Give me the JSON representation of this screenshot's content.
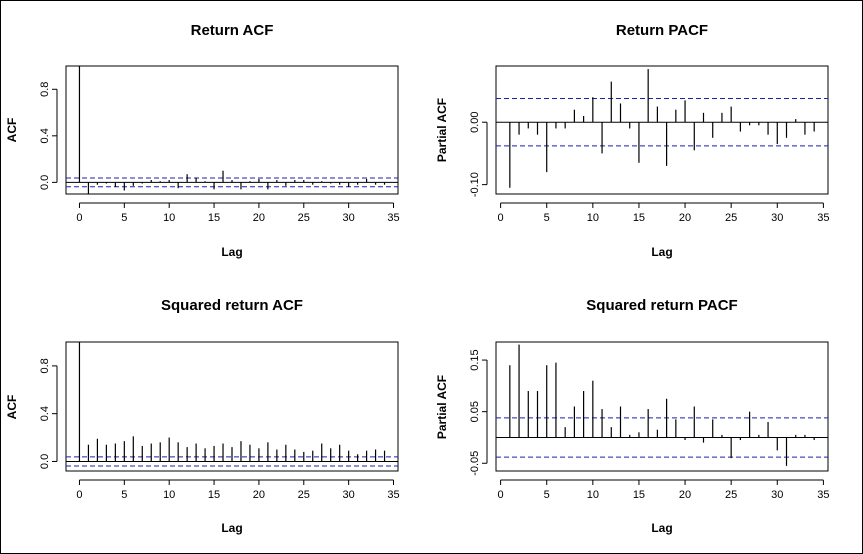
{
  "chart_data": [
    {
      "type": "bar",
      "title": "Return ACF",
      "xlabel": "Lag",
      "ylabel": "ACF",
      "xlim": [
        -1.5,
        35.5
      ],
      "ylim": [
        -0.1,
        1.0
      ],
      "xticks": [
        0,
        5,
        10,
        15,
        20,
        25,
        30,
        35
      ],
      "yticks": [
        0.0,
        0.4,
        0.8
      ],
      "ytick_labels": [
        "0.0",
        "0.4",
        "0.8"
      ],
      "zero_line": true,
      "ci": [
        0.038,
        -0.038
      ],
      "lags": [
        0,
        1,
        2,
        3,
        4,
        5,
        6,
        7,
        8,
        9,
        10,
        11,
        12,
        13,
        14,
        15,
        16,
        17,
        18,
        19,
        20,
        21,
        22,
        23,
        24,
        25,
        26,
        27,
        28,
        29,
        30,
        31,
        32,
        33,
        34
      ],
      "values": [
        1.0,
        -0.1,
        -0.02,
        -0.01,
        -0.04,
        -0.07,
        -0.03,
        -0.01,
        0.02,
        0.01,
        0.02,
        -0.05,
        0.07,
        0.04,
        0.01,
        -0.06,
        0.1,
        0.02,
        -0.06,
        0.01,
        0.03,
        -0.06,
        0.02,
        -0.03,
        0.02,
        0.02,
        -0.02,
        0.01,
        -0.01,
        -0.02,
        -0.04,
        -0.02,
        0.03,
        -0.02,
        -0.02
      ]
    },
    {
      "type": "bar",
      "title": "Return PACF",
      "xlabel": "Lag",
      "ylabel": "Partial ACF",
      "xlim": [
        -0.5,
        35.5
      ],
      "ylim": [
        -0.115,
        0.09
      ],
      "xticks": [
        0,
        5,
        10,
        15,
        20,
        25,
        30,
        35
      ],
      "yticks": [
        -0.1,
        0.0
      ],
      "ytick_labels": [
        "-0.10",
        "0.00"
      ],
      "zero_line": true,
      "ci": [
        0.038,
        -0.038
      ],
      "lags": [
        1,
        2,
        3,
        4,
        5,
        6,
        7,
        8,
        9,
        10,
        11,
        12,
        13,
        14,
        15,
        16,
        17,
        18,
        19,
        20,
        21,
        22,
        23,
        24,
        25,
        26,
        27,
        28,
        29,
        30,
        31,
        32,
        33,
        34
      ],
      "values": [
        -0.105,
        -0.02,
        -0.01,
        -0.02,
        -0.08,
        -0.01,
        -0.01,
        0.02,
        0.01,
        0.04,
        -0.05,
        0.065,
        0.03,
        -0.01,
        -0.065,
        0.085,
        0.025,
        -0.07,
        0.02,
        0.035,
        -0.045,
        0.015,
        -0.025,
        0.015,
        0.025,
        -0.015,
        -0.005,
        -0.005,
        -0.02,
        -0.035,
        -0.025,
        0.005,
        -0.02,
        -0.015
      ]
    },
    {
      "type": "bar",
      "title": "Squared return ACF",
      "xlabel": "Lag",
      "ylabel": "ACF",
      "xlim": [
        -1.5,
        35.5
      ],
      "ylim": [
        -0.08,
        1.0
      ],
      "xticks": [
        0,
        5,
        10,
        15,
        20,
        25,
        30,
        35
      ],
      "yticks": [
        0.0,
        0.4,
        0.8
      ],
      "ytick_labels": [
        "0.0",
        "0.4",
        "0.8"
      ],
      "zero_line": true,
      "ci": [
        0.038,
        -0.038
      ],
      "lags": [
        0,
        1,
        2,
        3,
        4,
        5,
        6,
        7,
        8,
        9,
        10,
        11,
        12,
        13,
        14,
        15,
        16,
        17,
        18,
        19,
        20,
        21,
        22,
        23,
        24,
        25,
        26,
        27,
        28,
        29,
        30,
        31,
        32,
        33,
        34
      ],
      "values": [
        1.0,
        0.14,
        0.19,
        0.14,
        0.15,
        0.17,
        0.21,
        0.13,
        0.15,
        0.16,
        0.2,
        0.16,
        0.12,
        0.15,
        0.11,
        0.13,
        0.15,
        0.12,
        0.17,
        0.14,
        0.11,
        0.16,
        0.1,
        0.14,
        0.1,
        0.08,
        0.09,
        0.15,
        0.11,
        0.14,
        0.09,
        0.06,
        0.09,
        0.1,
        0.09
      ]
    },
    {
      "type": "bar",
      "title": "Squared return PACF",
      "xlabel": "Lag",
      "ylabel": "Partial ACF",
      "xlim": [
        -0.5,
        35.5
      ],
      "ylim": [
        -0.065,
        0.185
      ],
      "xticks": [
        0,
        5,
        10,
        15,
        20,
        25,
        30,
        35
      ],
      "yticks": [
        -0.05,
        0.05,
        0.15
      ],
      "ytick_labels": [
        "-0.05",
        "0.05",
        "0.15"
      ],
      "zero_line": true,
      "ci": [
        0.038,
        -0.038
      ],
      "lags": [
        1,
        2,
        3,
        4,
        5,
        6,
        7,
        8,
        9,
        10,
        11,
        12,
        13,
        14,
        15,
        16,
        17,
        18,
        19,
        20,
        21,
        22,
        23,
        24,
        25,
        26,
        27,
        28,
        29,
        30,
        31,
        32,
        33,
        34
      ],
      "values": [
        0.14,
        0.18,
        0.09,
        0.09,
        0.14,
        0.145,
        0.02,
        0.06,
        0.09,
        0.11,
        0.055,
        0.02,
        0.06,
        0.005,
        0.01,
        0.055,
        0.015,
        0.075,
        0.035,
        -0.005,
        0.06,
        -0.01,
        0.035,
        0.005,
        -0.04,
        -0.005,
        0.05,
        0.005,
        0.03,
        -0.025,
        -0.055,
        0.005,
        0.005,
        -0.005
      ]
    }
  ]
}
